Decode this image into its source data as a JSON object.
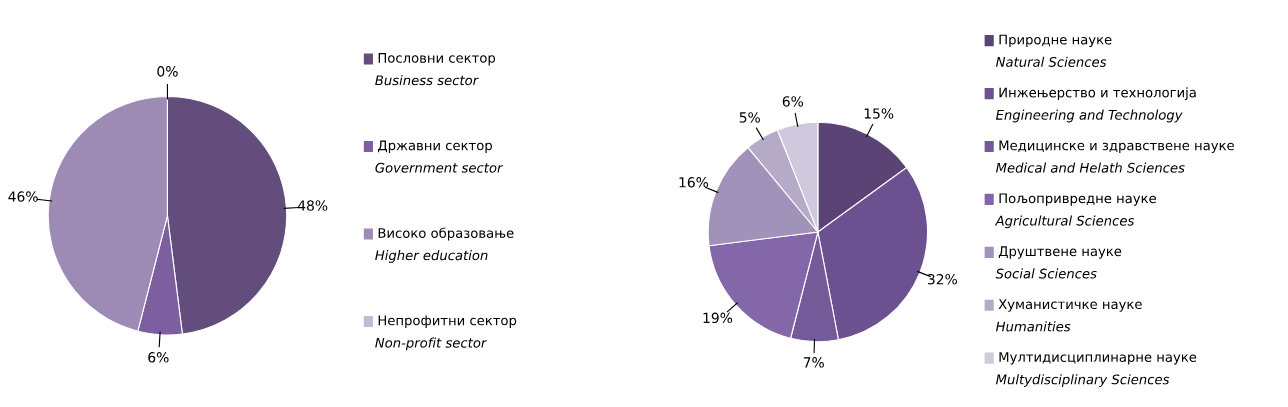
{
  "chart_data": [
    {
      "type": "pie",
      "categories": [
        "Пословни сектор\nBusiness sector",
        "Државни сектор\nGovernment sector",
        "Високо образовање\nHigher education",
        "Непрофитни сектор\nNon-profit sector"
      ],
      "values": [
        48,
        6,
        46,
        0
      ],
      "value_labels": [
        "48%",
        "6%",
        "46%",
        "0%"
      ],
      "colors": [
        "#624d7c",
        "#7d5f9f",
        "#9d8ab5",
        "#c4b9d4"
      ],
      "legend": "right"
    },
    {
      "type": "pie",
      "categories": [
        "Природне науке\nNatural Sciences",
        "Инжењерство и технологија\nEngineering and Technology",
        "Медицинске и здравствене науке\nMedical and Helath Sciences",
        "Пољопривредне науке\nAgricultural Sciences",
        "Друштвене науке\nSocial Sciences",
        "Хуманистичке науке\nHumanities",
        "Мултидисциплинарне науке\nMultydisciplinary Sciences"
      ],
      "values": [
        15,
        32,
        7,
        19,
        16,
        5,
        6
      ],
      "value_labels": [
        "15%",
        "32%",
        "7%",
        "19%",
        "16%",
        "5%",
        "6%"
      ],
      "colors": [
        "#5b4375",
        "#6c5190",
        "#745a98",
        "#8467a8",
        "#a192ba",
        "#b6aac9",
        "#d0c8dc"
      ],
      "legend": "right"
    }
  ]
}
